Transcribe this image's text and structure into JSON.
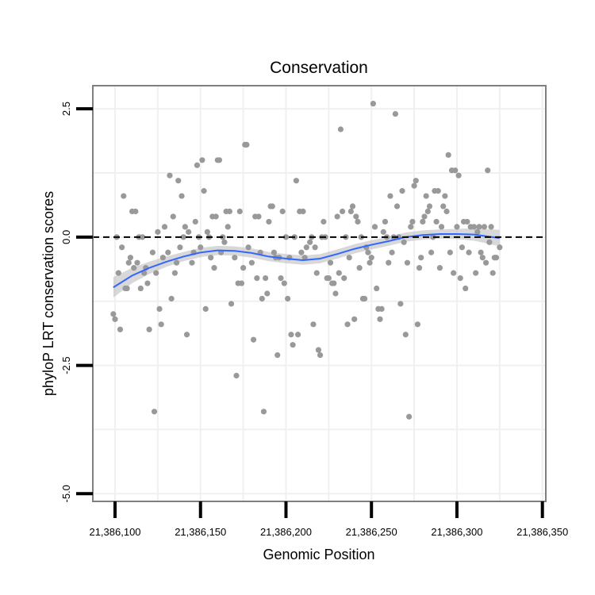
{
  "chart_data": {
    "type": "scatter",
    "title": "Conservation",
    "xlabel": "Genomic Position",
    "ylabel": "phyloP LRT conservation scores",
    "xlim": [
      21386087,
      21386352
    ],
    "ylim": [
      -5.15,
      2.95
    ],
    "x_ticks": [
      21386100,
      21386150,
      21386200,
      21386250,
      21386300,
      21386350
    ],
    "x_tick_labels": [
      "21,386,100",
      "21,386,150",
      "21,386,200",
      "21,386,250",
      "21,386,300",
      "21,386,350"
    ],
    "y_ticks": [
      2.5,
      0.0,
      -2.5,
      -5.0
    ],
    "y_tick_labels": [
      "2.5",
      "0.0",
      "-2.5",
      "-5.0"
    ],
    "reference_line": {
      "y": 0.0,
      "style": "dashed",
      "color": "#000000"
    },
    "grid": true,
    "colors": {
      "points": "#999999",
      "smooth": "#3366ff",
      "ribbon": "#bebebe",
      "grid": "#f0f0f0",
      "border": "#7f7f7f"
    },
    "points": [
      [
        21386099,
        -1.5
      ],
      [
        21386100,
        -1.6
      ],
      [
        21386101,
        0.0
      ],
      [
        21386102,
        -0.7
      ],
      [
        21386103,
        -1.8
      ],
      [
        21386104,
        -0.2
      ],
      [
        21386105,
        0.8
      ],
      [
        21386106,
        -1.0
      ],
      [
        21386107,
        -1.0
      ],
      [
        21386108,
        -0.5
      ],
      [
        21386109,
        -0.4
      ],
      [
        21386110,
        0.5
      ],
      [
        21386111,
        -0.6
      ],
      [
        21386112,
        0.5
      ],
      [
        21386113,
        -0.5
      ],
      [
        21386114,
        0.0
      ],
      [
        21386115,
        -1.0
      ],
      [
        21386116,
        0.0
      ],
      [
        21386117,
        -0.7
      ],
      [
        21386118,
        -0.6
      ],
      [
        21386119,
        -0.9
      ],
      [
        21386120,
        -1.8
      ],
      [
        21386122,
        -0.3
      ],
      [
        21386123,
        -3.4
      ],
      [
        21386124,
        -0.7
      ],
      [
        21386125,
        0.1
      ],
      [
        21386126,
        -1.4
      ],
      [
        21386127,
        -1.7
      ],
      [
        21386128,
        -0.4
      ],
      [
        21386129,
        0.2
      ],
      [
        21386131,
        -0.3
      ],
      [
        21386132,
        1.2
      ],
      [
        21386133,
        -1.2
      ],
      [
        21386134,
        0.4
      ],
      [
        21386135,
        -0.7
      ],
      [
        21386136,
        -0.5
      ],
      [
        21386137,
        1.1
      ],
      [
        21386138,
        -0.2
      ],
      [
        21386139,
        0.8
      ],
      [
        21386140,
        0.0
      ],
      [
        21386141,
        0.2
      ],
      [
        21386142,
        -1.9
      ],
      [
        21386143,
        0.1
      ],
      [
        21386145,
        -0.5
      ],
      [
        21386146,
        -0.3
      ],
      [
        21386147,
        0.3
      ],
      [
        21386148,
        1.4
      ],
      [
        21386149,
        0.0
      ],
      [
        21386150,
        -0.2
      ],
      [
        21386151,
        1.5
      ],
      [
        21386152,
        0.9
      ],
      [
        21386153,
        -1.4
      ],
      [
        21386154,
        0.1
      ],
      [
        21386155,
        0.0
      ],
      [
        21386156,
        -0.4
      ],
      [
        21386157,
        0.4
      ],
      [
        21386158,
        -0.6
      ],
      [
        21386159,
        0.4
      ],
      [
        21386160,
        1.5
      ],
      [
        21386161,
        1.5
      ],
      [
        21386162,
        -0.3
      ],
      [
        21386163,
        0.0
      ],
      [
        21386164,
        -0.1
      ],
      [
        21386165,
        0.5
      ],
      [
        21386166,
        0.2
      ],
      [
        21386167,
        0.5
      ],
      [
        21386168,
        -1.3
      ],
      [
        21386170,
        -0.4
      ],
      [
        21386171,
        -2.7
      ],
      [
        21386172,
        -0.9
      ],
      [
        21386173,
        0.5
      ],
      [
        21386174,
        -0.9
      ],
      [
        21386175,
        -0.6
      ],
      [
        21386176,
        1.8
      ],
      [
        21386177,
        1.8
      ],
      [
        21386178,
        -0.2
      ],
      [
        21386180,
        -0.5
      ],
      [
        21386181,
        -2.0
      ],
      [
        21386182,
        0.4
      ],
      [
        21386183,
        -0.8
      ],
      [
        21386184,
        0.4
      ],
      [
        21386185,
        -0.3
      ],
      [
        21386186,
        -1.2
      ],
      [
        21386187,
        -3.4
      ],
      [
        21386188,
        -0.8
      ],
      [
        21386189,
        -1.1
      ],
      [
        21386190,
        0.3
      ],
      [
        21386191,
        0.6
      ],
      [
        21386192,
        0.6
      ],
      [
        21386193,
        -0.3
      ],
      [
        21386194,
        -0.4
      ],
      [
        21386195,
        -2.3
      ],
      [
        21386196,
        -0.4
      ],
      [
        21386197,
        -0.8
      ],
      [
        21386198,
        0.5
      ],
      [
        21386199,
        -0.9
      ],
      [
        21386200,
        0.0
      ],
      [
        21386201,
        -1.2
      ],
      [
        21386202,
        -0.4
      ],
      [
        21386203,
        -1.9
      ],
      [
        21386204,
        -2.1
      ],
      [
        21386205,
        0.0
      ],
      [
        21386206,
        1.1
      ],
      [
        21386207,
        -1.9
      ],
      [
        21386208,
        0.5
      ],
      [
        21386209,
        -0.3
      ],
      [
        21386210,
        0.5
      ],
      [
        21386211,
        -0.4
      ],
      [
        21386212,
        -0.2
      ],
      [
        21386214,
        -0.1
      ],
      [
        21386215,
        0.0
      ],
      [
        21386216,
        -1.7
      ],
      [
        21386217,
        -0.2
      ],
      [
        21386218,
        -0.7
      ],
      [
        21386219,
        -2.2
      ],
      [
        21386220,
        -2.3
      ],
      [
        21386221,
        0.0
      ],
      [
        21386222,
        0.3
      ],
      [
        21386223,
        0.0
      ],
      [
        21386224,
        -0.8
      ],
      [
        21386225,
        -0.8
      ],
      [
        21386226,
        -0.5
      ],
      [
        21386227,
        -0.9
      ],
      [
        21386228,
        -0.9
      ],
      [
        21386229,
        -1.1
      ],
      [
        21386230,
        0.4
      ],
      [
        21386231,
        -0.7
      ],
      [
        21386232,
        2.1
      ],
      [
        21386233,
        0.5
      ],
      [
        21386234,
        -0.8
      ],
      [
        21386235,
        0.0
      ],
      [
        21386236,
        -1.7
      ],
      [
        21386237,
        -0.4
      ],
      [
        21386238,
        0.5
      ],
      [
        21386239,
        0.6
      ],
      [
        21386240,
        -1.6
      ],
      [
        21386241,
        0.4
      ],
      [
        21386242,
        0.3
      ],
      [
        21386243,
        -0.6
      ],
      [
        21386244,
        0.0
      ],
      [
        21386245,
        -1.2
      ],
      [
        21386246,
        -1.2
      ],
      [
        21386247,
        -0.2
      ],
      [
        21386248,
        -0.3
      ],
      [
        21386249,
        -0.5
      ],
      [
        21386250,
        -0.4
      ],
      [
        21386251,
        2.6
      ],
      [
        21386252,
        0.2
      ],
      [
        21386253,
        -1.0
      ],
      [
        21386254,
        -1.4
      ],
      [
        21386255,
        -1.6
      ],
      [
        21386256,
        -1.4
      ],
      [
        21386257,
        0.1
      ],
      [
        21386258,
        0.3
      ],
      [
        21386259,
        0.0
      ],
      [
        21386260,
        -0.5
      ],
      [
        21386261,
        0.8
      ],
      [
        21386262,
        -0.3
      ],
      [
        21386263,
        0.0
      ],
      [
        21386264,
        2.4
      ],
      [
        21386265,
        0.6
      ],
      [
        21386266,
        0.0
      ],
      [
        21386267,
        -1.3
      ],
      [
        21386268,
        0.9
      ],
      [
        21386269,
        -0.1
      ],
      [
        21386270,
        -1.9
      ],
      [
        21386271,
        -0.5
      ],
      [
        21386272,
        -3.5
      ],
      [
        21386273,
        0.2
      ],
      [
        21386274,
        0.3
      ],
      [
        21386275,
        1.0
      ],
      [
        21386276,
        1.1
      ],
      [
        21386277,
        -1.7
      ],
      [
        21386278,
        -0.6
      ],
      [
        21386279,
        -0.4
      ],
      [
        21386280,
        0.3
      ],
      [
        21386281,
        0.4
      ],
      [
        21386282,
        0.8
      ],
      [
        21386283,
        0.5
      ],
      [
        21386284,
        0.6
      ],
      [
        21386285,
        -0.3
      ],
      [
        21386286,
        0.0
      ],
      [
        21386287,
        0.9
      ],
      [
        21386288,
        0.3
      ],
      [
        21386289,
        0.9
      ],
      [
        21386290,
        -0.6
      ],
      [
        21386291,
        0.2
      ],
      [
        21386292,
        0.6
      ],
      [
        21386293,
        0.8
      ],
      [
        21386294,
        0.5
      ],
      [
        21386295,
        1.6
      ],
      [
        21386296,
        -0.3
      ],
      [
        21386297,
        1.3
      ],
      [
        21386298,
        -0.7
      ],
      [
        21386299,
        1.3
      ],
      [
        21386300,
        0.2
      ],
      [
        21386301,
        1.2
      ],
      [
        21386302,
        -0.8
      ],
      [
        21386303,
        -0.2
      ],
      [
        21386304,
        0.3
      ],
      [
        21386305,
        -1.0
      ],
      [
        21386306,
        0.3
      ],
      [
        21386307,
        -0.3
      ],
      [
        21386308,
        0.2
      ],
      [
        21386310,
        0.2
      ],
      [
        21386311,
        -0.7
      ],
      [
        21386312,
        0.1
      ],
      [
        21386313,
        0.2
      ],
      [
        21386314,
        -0.3
      ],
      [
        21386315,
        -0.4
      ],
      [
        21386316,
        0.2
      ],
      [
        21386317,
        -0.5
      ],
      [
        21386318,
        1.3
      ],
      [
        21386319,
        -0.1
      ],
      [
        21386320,
        0.2
      ],
      [
        21386321,
        -0.7
      ],
      [
        21386322,
        -0.4
      ],
      [
        21386323,
        -0.4
      ],
      [
        21386325,
        -0.2
      ]
    ],
    "smooth_series": {
      "name": "loess fit",
      "x": [
        21386099,
        21386110,
        21386120,
        21386130,
        21386140,
        21386150,
        21386160,
        21386170,
        21386180,
        21386190,
        21386200,
        21386210,
        21386220,
        21386230,
        21386240,
        21386250,
        21386260,
        21386270,
        21386280,
        21386290,
        21386300,
        21386310,
        21386325
      ],
      "y": [
        -0.98,
        -0.75,
        -0.6,
        -0.48,
        -0.38,
        -0.3,
        -0.26,
        -0.27,
        -0.31,
        -0.38,
        -0.42,
        -0.45,
        -0.42,
        -0.33,
        -0.23,
        -0.15,
        -0.08,
        0.0,
        0.04,
        0.06,
        0.06,
        0.05,
        -0.02
      ],
      "se": [
        0.2,
        0.15,
        0.12,
        0.1,
        0.09,
        0.09,
        0.09,
        0.09,
        0.09,
        0.09,
        0.09,
        0.09,
        0.09,
        0.09,
        0.09,
        0.09,
        0.09,
        0.09,
        0.09,
        0.09,
        0.1,
        0.12,
        0.16
      ]
    }
  }
}
